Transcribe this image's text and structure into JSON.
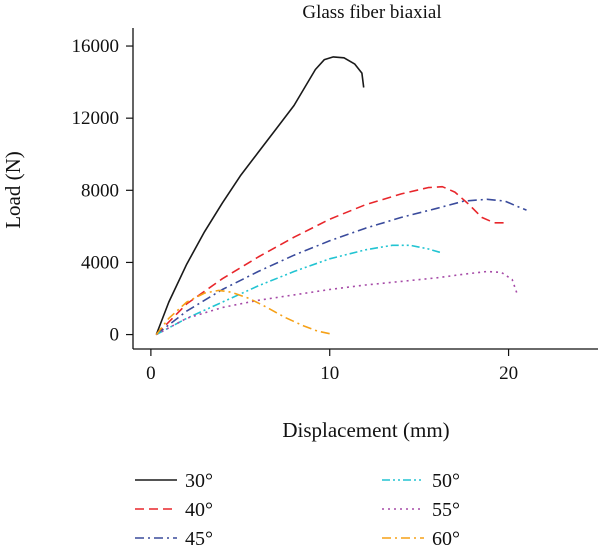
{
  "chart_data": {
    "type": "line",
    "title": "Glass fiber biaxial",
    "xlabel": "Displacement (mm)",
    "ylabel": "Load (N)",
    "xlim": [
      -1,
      25
    ],
    "ylim": [
      -800,
      17000
    ],
    "xticks": [
      0,
      10,
      20
    ],
    "yticks": [
      0,
      4000,
      8000,
      12000,
      16000
    ],
    "x_tick_labels": [
      "0",
      "10",
      "20"
    ],
    "y_tick_labels": [
      "0",
      "4000",
      "8000",
      "12000",
      "16000"
    ],
    "grid": false,
    "legend_position": "bottom",
    "series": [
      {
        "name": "30°",
        "color": "#1a1a1a",
        "dash": "solid",
        "points": [
          [
            0.3,
            0
          ],
          [
            1.0,
            1800
          ],
          [
            2.0,
            3900
          ],
          [
            3.0,
            5700
          ],
          [
            4.0,
            7300
          ],
          [
            5.0,
            8800
          ],
          [
            6.0,
            10100
          ],
          [
            7.0,
            11400
          ],
          [
            8.0,
            12700
          ],
          [
            8.6,
            13700
          ],
          [
            9.2,
            14700
          ],
          [
            9.7,
            15250
          ],
          [
            10.2,
            15400
          ],
          [
            10.8,
            15350
          ],
          [
            11.4,
            15000
          ],
          [
            11.8,
            14500
          ],
          [
            11.9,
            13700
          ]
        ]
      },
      {
        "name": "40°",
        "color": "#e8262b",
        "dash": "longdash",
        "points": [
          [
            0.3,
            0
          ],
          [
            2.0,
            1700
          ],
          [
            4.0,
            3100
          ],
          [
            6.0,
            4300
          ],
          [
            8.0,
            5400
          ],
          [
            10.0,
            6400
          ],
          [
            12.0,
            7200
          ],
          [
            14.0,
            7800
          ],
          [
            15.5,
            8150
          ],
          [
            16.3,
            8200
          ],
          [
            17.0,
            7900
          ],
          [
            17.8,
            7200
          ],
          [
            18.5,
            6500
          ],
          [
            19.2,
            6200
          ],
          [
            20.0,
            6200
          ]
        ]
      },
      {
        "name": "45°",
        "color": "#3a4b9c",
        "dash": "dashdot",
        "points": [
          [
            0.3,
            0
          ],
          [
            2.0,
            1300
          ],
          [
            4.0,
            2500
          ],
          [
            6.0,
            3500
          ],
          [
            8.0,
            4400
          ],
          [
            10.0,
            5200
          ],
          [
            12.0,
            5900
          ],
          [
            14.0,
            6500
          ],
          [
            16.0,
            7000
          ],
          [
            17.5,
            7400
          ],
          [
            18.8,
            7500
          ],
          [
            19.8,
            7400
          ],
          [
            20.5,
            7100
          ],
          [
            21.0,
            6900
          ]
        ]
      },
      {
        "name": "50°",
        "color": "#22c4d2",
        "dash": "dashdotdot",
        "points": [
          [
            0.3,
            0
          ],
          [
            2.0,
            900
          ],
          [
            4.0,
            1800
          ],
          [
            6.0,
            2700
          ],
          [
            8.0,
            3500
          ],
          [
            10.0,
            4200
          ],
          [
            12.0,
            4700
          ],
          [
            13.5,
            4950
          ],
          [
            14.5,
            4950
          ],
          [
            15.5,
            4750
          ],
          [
            16.2,
            4550
          ]
        ]
      },
      {
        "name": "55°",
        "color": "#a64aa7",
        "dash": "dotted",
        "points": [
          [
            0.3,
            0
          ],
          [
            2.0,
            900
          ],
          [
            4.0,
            1500
          ],
          [
            6.0,
            1900
          ],
          [
            8.0,
            2200
          ],
          [
            10.0,
            2500
          ],
          [
            12.0,
            2750
          ],
          [
            14.0,
            2950
          ],
          [
            16.0,
            3150
          ],
          [
            17.5,
            3350
          ],
          [
            18.8,
            3500
          ],
          [
            19.6,
            3450
          ],
          [
            20.2,
            3050
          ],
          [
            20.5,
            2200
          ]
        ]
      },
      {
        "name": "60°",
        "color": "#f6a117",
        "dash": "dashdot",
        "points": [
          [
            0.3,
            0
          ],
          [
            1.0,
            900
          ],
          [
            2.0,
            1800
          ],
          [
            3.0,
            2300
          ],
          [
            3.8,
            2450
          ],
          [
            4.5,
            2350
          ],
          [
            5.5,
            2000
          ],
          [
            6.5,
            1500
          ],
          [
            7.5,
            950
          ],
          [
            8.5,
            500
          ],
          [
            9.3,
            200
          ],
          [
            10.0,
            50
          ]
        ]
      }
    ]
  }
}
